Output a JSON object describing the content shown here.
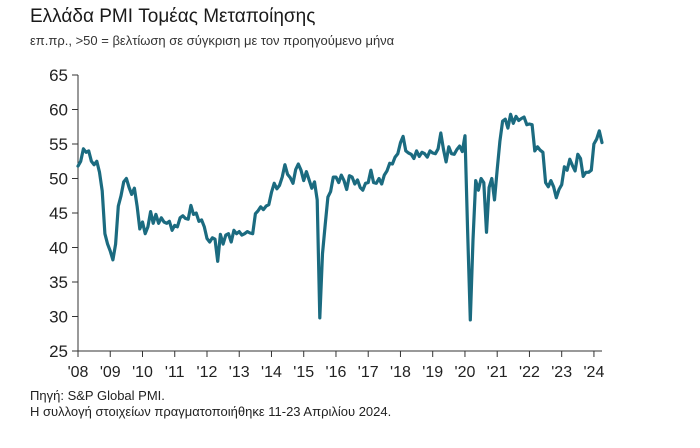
{
  "header": {
    "title": "Ελλάδα PMI Τομέας Μεταποίησης",
    "subtitle": "επ.πρ., >50 = βελτίωση σε σύγκριση με τον προηγούμενο μήνα"
  },
  "footer": {
    "source": "Πηγή: S&P Global PMI.",
    "collection": "Η συλλογή στοιχείων πραγματοποιήθηκε 11-23 Απριλίου 2024."
  },
  "colors": {
    "line": "#1b6b80",
    "axis": "#333333",
    "text": "#222222"
  },
  "chart_data": {
    "type": "line",
    "title": "Ελλάδα PMI Τομέας Μεταποίησης",
    "subtitle": "επ.πρ., >50 = βελτίωση σε σύγκριση με τον προηγούμενο μήνα",
    "xlabel": "",
    "ylabel": "",
    "ylim": [
      25,
      65
    ],
    "yticks": [
      25,
      30,
      35,
      40,
      45,
      50,
      55,
      60,
      65
    ],
    "xlim": [
      "2008-01",
      "2024-04"
    ],
    "xticks": [
      "'08",
      "'09",
      "'10",
      "'11",
      "'12",
      "'13",
      "'14",
      "'15",
      "'16",
      "'17",
      "'18",
      "'19",
      "'20",
      "'21",
      "'22",
      "'23",
      "'24"
    ],
    "xtick_years": [
      2008,
      2009,
      2010,
      2011,
      2012,
      2013,
      2014,
      2015,
      2016,
      2017,
      2018,
      2019,
      2020,
      2021,
      2022,
      2023,
      2024
    ],
    "grid": false,
    "series": [
      {
        "x": [
          "2008-01",
          "2008-02",
          "2008-03",
          "2008-04",
          "2008-05",
          "2008-06",
          "2008-07",
          "2008-08",
          "2008-09",
          "2008-10",
          "2008-11",
          "2008-12",
          "2009-01",
          "2009-02",
          "2009-03",
          "2009-04",
          "2009-05",
          "2009-06",
          "2009-07",
          "2009-08",
          "2009-09",
          "2009-10",
          "2009-11",
          "2009-12",
          "2010-01",
          "2010-02",
          "2010-03",
          "2010-04",
          "2010-05",
          "2010-06",
          "2010-07",
          "2010-08",
          "2010-09",
          "2010-10",
          "2010-11",
          "2010-12",
          "2011-01",
          "2011-02",
          "2011-03",
          "2011-04",
          "2011-05",
          "2011-06",
          "2011-07",
          "2011-08",
          "2011-09",
          "2011-10",
          "2011-11",
          "2011-12",
          "2012-01",
          "2012-02",
          "2012-03",
          "2012-04",
          "2012-05",
          "2012-06",
          "2012-07",
          "2012-08",
          "2012-09",
          "2012-10",
          "2012-11",
          "2012-12",
          "2013-01",
          "2013-02",
          "2013-03",
          "2013-04",
          "2013-05",
          "2013-06",
          "2013-07",
          "2013-08",
          "2013-09",
          "2013-10",
          "2013-11",
          "2013-12",
          "2014-01",
          "2014-02",
          "2014-03",
          "2014-04",
          "2014-05",
          "2014-06",
          "2014-07",
          "2014-08",
          "2014-09",
          "2014-10",
          "2014-11",
          "2014-12",
          "2015-01",
          "2015-02",
          "2015-03",
          "2015-04",
          "2015-05",
          "2015-06",
          "2015-07",
          "2015-08",
          "2015-09",
          "2015-10",
          "2015-11",
          "2015-12",
          "2016-01",
          "2016-02",
          "2016-03",
          "2016-04",
          "2016-05",
          "2016-06",
          "2016-07",
          "2016-08",
          "2016-09",
          "2016-10",
          "2016-11",
          "2016-12",
          "2017-01",
          "2017-02",
          "2017-03",
          "2017-04",
          "2017-05",
          "2017-06",
          "2017-07",
          "2017-08",
          "2017-09",
          "2017-10",
          "2017-11",
          "2017-12",
          "2018-01",
          "2018-02",
          "2018-03",
          "2018-04",
          "2018-05",
          "2018-06",
          "2018-07",
          "2018-08",
          "2018-09",
          "2018-10",
          "2018-11",
          "2018-12",
          "2019-01",
          "2019-02",
          "2019-03",
          "2019-04",
          "2019-05",
          "2019-06",
          "2019-07",
          "2019-08",
          "2019-09",
          "2019-10",
          "2019-11",
          "2019-12",
          "2020-01",
          "2020-02",
          "2020-03",
          "2020-04",
          "2020-05",
          "2020-06",
          "2020-07",
          "2020-08",
          "2020-09",
          "2020-10",
          "2020-11",
          "2020-12",
          "2021-01",
          "2021-02",
          "2021-03",
          "2021-04",
          "2021-05",
          "2021-06",
          "2021-07",
          "2021-08",
          "2021-09",
          "2021-10",
          "2021-11",
          "2021-12",
          "2022-01",
          "2022-02",
          "2022-03",
          "2022-04",
          "2022-05",
          "2022-06",
          "2022-07",
          "2022-08",
          "2022-09",
          "2022-10",
          "2022-11",
          "2022-12",
          "2023-01",
          "2023-02",
          "2023-03",
          "2023-04",
          "2023-05",
          "2023-06",
          "2023-07",
          "2023-08",
          "2023-09",
          "2023-10",
          "2023-11",
          "2023-12",
          "2024-01",
          "2024-02",
          "2024-03",
          "2024-04"
        ],
        "values": [
          51.8,
          52.5,
          54.3,
          53.8,
          54.0,
          52.5,
          52.0,
          52.5,
          50.9,
          48.2,
          42.0,
          40.5,
          39.5,
          38.2,
          40.5,
          46.0,
          47.5,
          49.5,
          50.0,
          48.7,
          47.7,
          48.6,
          46.0,
          42.7,
          43.7,
          42.0,
          43.0,
          45.2,
          43.5,
          44.8,
          43.5,
          44.3,
          43.7,
          43.5,
          43.8,
          42.5,
          43.2,
          43.0,
          44.3,
          44.6,
          44.2,
          44.1,
          46.1,
          44.8,
          45.0,
          43.8,
          44.0,
          43.0,
          41.3,
          40.8,
          41.4,
          41.2,
          38.0,
          41.9,
          40.5,
          41.8,
          42.0,
          40.8,
          42.5,
          42.0,
          42.3,
          41.8,
          42.0,
          42.3,
          42.1,
          42.0,
          44.9,
          45.3,
          45.9,
          45.5,
          46.0,
          46.2,
          48.0,
          49.3,
          48.5,
          49.0,
          50.2,
          52.0,
          50.6,
          50.1,
          49.3,
          51.3,
          52.1,
          51.2,
          49.7,
          51.0,
          49.8,
          48.6,
          49.5,
          46.9,
          29.8,
          39.1,
          43.3,
          47.3,
          48.1,
          50.2,
          50.2,
          49.4,
          50.5,
          49.7,
          48.4,
          50.4,
          50.2,
          49.2,
          49.8,
          48.7,
          48.3,
          49.3,
          49.4,
          51.2,
          49.4,
          49.3,
          50.0,
          49.2,
          50.5,
          51.1,
          52.2,
          52.1,
          53.1,
          53.6,
          55.2,
          56.1,
          54.0,
          53.7,
          53.5,
          52.9,
          54.0,
          53.2,
          53.8,
          53.6,
          53.1,
          54.0,
          53.7,
          53.6,
          54.3,
          56.6,
          54.2,
          52.4,
          54.6,
          53.6,
          53.5,
          54.2,
          54.7,
          53.9,
          56.2,
          42.5,
          29.5,
          41.1,
          49.7,
          48.3,
          50.0,
          49.4,
          42.2,
          48.7,
          50.0,
          46.9,
          51.3,
          55.4,
          58.3,
          58.6,
          57.3,
          59.3,
          58.0,
          59.0,
          58.4,
          58.7,
          58.9,
          57.8,
          57.9,
          57.8,
          54.0,
          54.6,
          54.1,
          53.8,
          49.4,
          48.8,
          49.7,
          48.8,
          47.2,
          48.4,
          49.1,
          51.7,
          51.2,
          52.8,
          51.9,
          51.1,
          53.5,
          52.9,
          50.3,
          50.9,
          50.9,
          51.2,
          55.0,
          55.7,
          56.9,
          55.2
        ]
      }
    ]
  }
}
